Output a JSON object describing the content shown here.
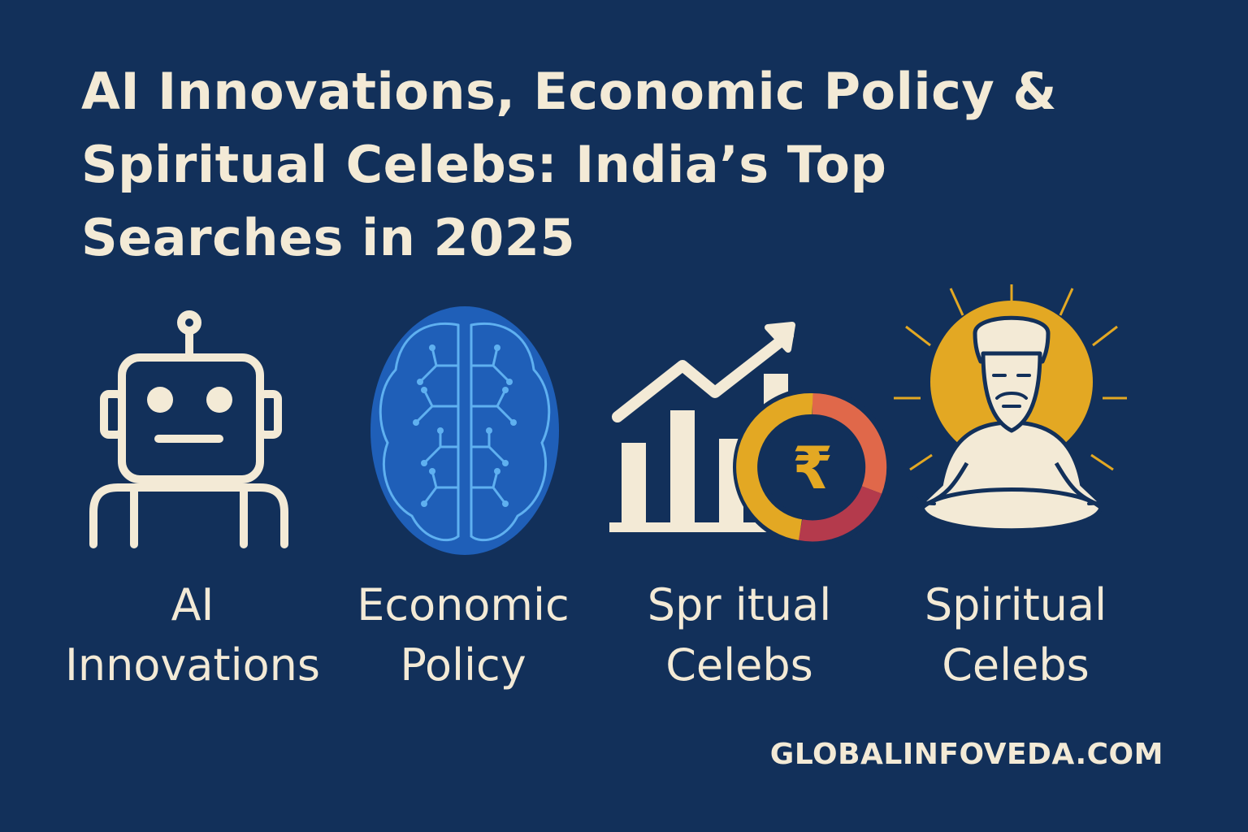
{
  "title": {
    "lines": [
      "AI Innovations, Economic Policy &",
      "Spiritual Celebs: India’s Top",
      "Searches in 2025"
    ]
  },
  "items": [
    {
      "icon": "robot-icon",
      "label_lines": [
        "AI",
        "Innovations"
      ]
    },
    {
      "icon": "brain-icon",
      "label_lines": [
        "Economic",
        "Policy"
      ]
    },
    {
      "icon": "growth-chart-rupee-icon",
      "label_lines": [
        "Spr itual",
        "Celebs"
      ]
    },
    {
      "icon": "meditating-guru-icon",
      "label_lines": [
        "Spiritual",
        "Celebs"
      ]
    }
  ],
  "footer": {
    "site": "GLOBALINFOVEDA.COM"
  },
  "colors": {
    "background": "#12305a",
    "text": "#f3ead6",
    "brain": "#1f5fb8",
    "gold": "#e3a823",
    "orange": "#e0684a",
    "crimson": "#b43a4c"
  }
}
